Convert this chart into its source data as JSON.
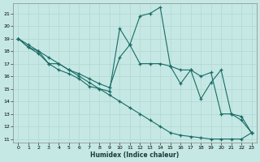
{
  "xlabel": "Humidex (Indice chaleur)",
  "bg_color": "#c5e8e4",
  "line_color": "#1a6b65",
  "grid_color": "#b0d8d4",
  "xlim": [
    -0.5,
    23.5
  ],
  "ylim": [
    10.7,
    21.8
  ],
  "yticks": [
    11,
    12,
    13,
    14,
    15,
    16,
    17,
    18,
    19,
    20,
    21
  ],
  "xticks": [
    0,
    1,
    2,
    3,
    4,
    5,
    6,
    7,
    8,
    9,
    10,
    11,
    12,
    13,
    14,
    15,
    16,
    17,
    18,
    19,
    20,
    21,
    22,
    23
  ],
  "line1_x": [
    0,
    1,
    2,
    3,
    4,
    5,
    6,
    7,
    8,
    9,
    10,
    11,
    12,
    13,
    14,
    15,
    16,
    17,
    18,
    19,
    20,
    21,
    22,
    23
  ],
  "line1_y": [
    19.0,
    18.5,
    18.0,
    17.5,
    17.0,
    16.5,
    16.0,
    15.5,
    15.0,
    14.5,
    14.0,
    13.5,
    13.0,
    12.5,
    12.0,
    11.5,
    11.3,
    11.2,
    11.1,
    11.0,
    11.0,
    11.0,
    11.0,
    11.5
  ],
  "line2_x": [
    0,
    1,
    2,
    3,
    4,
    5,
    6,
    7,
    8,
    9,
    10,
    11,
    12,
    13,
    14,
    15,
    16,
    17,
    18,
    19,
    20,
    21,
    22,
    23
  ],
  "line2_y": [
    19.0,
    18.3,
    18.0,
    17.0,
    17.0,
    16.5,
    16.2,
    15.8,
    15.4,
    15.1,
    17.5,
    18.5,
    17.0,
    17.0,
    17.0,
    16.8,
    16.5,
    16.5,
    16.0,
    16.3,
    13.0,
    13.0,
    12.5,
    11.5
  ],
  "line3_x": [
    0,
    1,
    2,
    3,
    4,
    5,
    6,
    7,
    8,
    9,
    10,
    11,
    12,
    13,
    14,
    15,
    16,
    17,
    18,
    19,
    20,
    21,
    22,
    23
  ],
  "line3_y": [
    19.0,
    18.3,
    17.8,
    17.0,
    16.5,
    16.2,
    15.8,
    15.2,
    15.0,
    14.8,
    19.8,
    18.5,
    20.8,
    21.0,
    21.5,
    16.8,
    15.4,
    16.5,
    14.2,
    15.5,
    16.5,
    13.0,
    12.8,
    11.5
  ]
}
